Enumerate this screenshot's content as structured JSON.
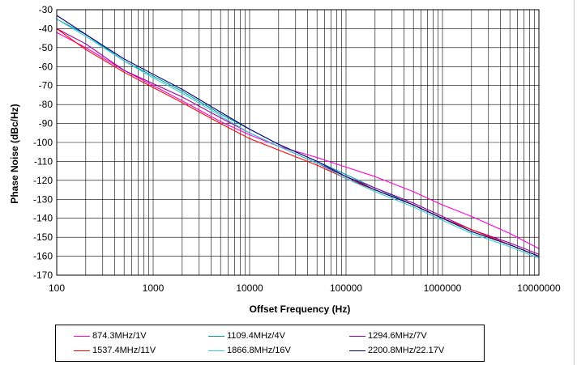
{
  "chart_data": {
    "type": "line",
    "title": "",
    "xlabel": "Offset Frequency (Hz)",
    "ylabel": "Phase Noise (dBc/Hz)",
    "x_scale": "log",
    "xlim": [
      100,
      10000000
    ],
    "ylim": [
      -170,
      -30
    ],
    "x_tick_labels": [
      "100",
      "1000",
      "10000",
      "100000",
      "1000000",
      "10000000"
    ],
    "y_tick_labels": [
      "-30",
      "-40",
      "-50",
      "-60",
      "-70",
      "-80",
      "-90",
      "-100",
      "-110",
      "-120",
      "-130",
      "-140",
      "-150",
      "-160",
      "-170"
    ],
    "grid": true,
    "legend_position": "bottom",
    "x": [
      100,
      200,
      500,
      1000,
      2000,
      5000,
      10000,
      20000,
      50000,
      100000,
      200000,
      500000,
      1000000,
      2000000,
      5000000,
      10000000
    ],
    "series": [
      {
        "name": "874.3MHz/1V",
        "color": "#ff00cc",
        "values": [
          -42,
          -50,
          -62,
          -70,
          -78,
          -89,
          -96,
          -102,
          -108,
          -113,
          -118,
          -126,
          -133,
          -139,
          -148,
          -156
        ]
      },
      {
        "name": "1109.4MHz/4V",
        "color": "#009999",
        "values": [
          -35,
          -43,
          -57,
          -65,
          -73,
          -85,
          -93,
          -101,
          -110,
          -117,
          -124,
          -133,
          -140,
          -147,
          -154,
          -160
        ]
      },
      {
        "name": "1294.6MHz/7V",
        "color": "#990099",
        "values": [
          -40,
          -48,
          -62,
          -69,
          -76,
          -87,
          -95,
          -102,
          -111,
          -118,
          -124,
          -132,
          -139,
          -146,
          -153,
          -159
        ]
      },
      {
        "name": "1537.4MHz/11V",
        "color": "#ff0000",
        "values": [
          -40,
          -51,
          -63,
          -71,
          -79,
          -90,
          -98,
          -104,
          -112,
          -119,
          -125,
          -133,
          -140,
          -146,
          -154,
          -160
        ]
      },
      {
        "name": "1866.8MHz/16V",
        "color": "#33cccc",
        "values": [
          -35,
          -44,
          -57,
          -66,
          -74,
          -86,
          -95,
          -102,
          -111,
          -119,
          -126,
          -134,
          -141,
          -148,
          -155,
          -161
        ]
      },
      {
        "name": "2200.8MHz/22.17V",
        "color": "#000080",
        "values": [
          -33,
          -43,
          -56,
          -64,
          -72,
          -84,
          -93,
          -101,
          -110,
          -118,
          -125,
          -133,
          -140,
          -147,
          -154,
          -160
        ]
      }
    ]
  }
}
